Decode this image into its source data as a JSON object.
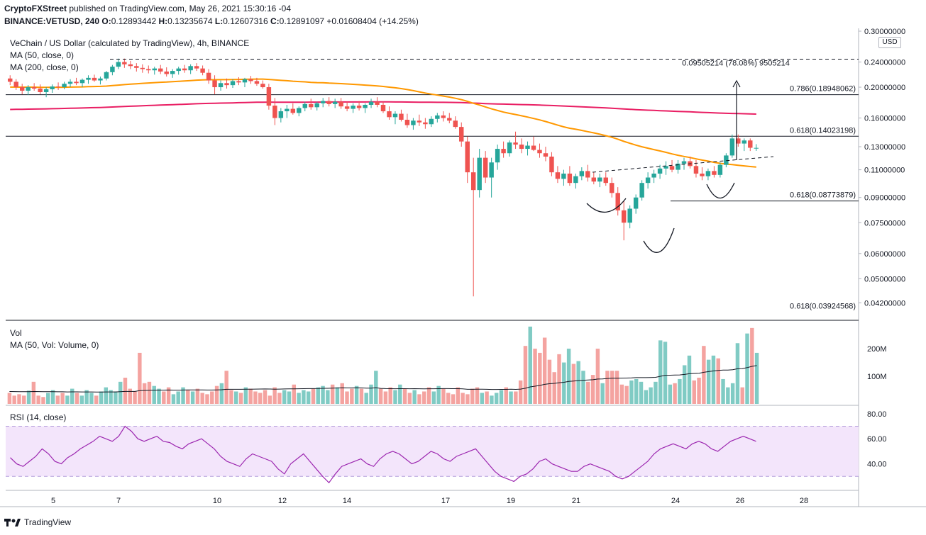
{
  "header": {
    "line1_user": "CryptoFXStreet",
    "line1_rest": " published on TradingView.com, May 26, 2021 15:30:16 -04",
    "line2_symbol": "BINANCE:VETUSD, 240",
    "line2_o_label": "O:",
    "line2_o": "0.12893442",
    "line2_h_label": "H:",
    "line2_h": "0.13235674",
    "line2_l_label": "L:",
    "line2_l": "0.12607316",
    "line2_c_label": "C:",
    "line2_c": "0.12891097",
    "line2_change": "+0.01608404 (+14.25%)"
  },
  "legend": {
    "title": "VeChain / US Dollar (calculated by TradingView), 4h, BINANCE",
    "ma50": "MA (50, close, 0)",
    "ma200": "MA (200, close, 0)",
    "vol_title": "Vol",
    "vol_ma": "MA (50, Vol: Volume, 0)",
    "rsi_title": "RSI (14, close)"
  },
  "currency": "USD",
  "footer": {
    "brand": "TradingView"
  },
  "colors": {
    "up": "#26a69a",
    "down": "#ef5350",
    "ma50": "#ff9800",
    "ma200": "#e91e63",
    "rsi": "#9c27b0",
    "rsi_band": "#f3e5fb"
  },
  "chart_data": [
    {
      "type": "candlestick",
      "title": "VeChain / US Dollar (calculated by TradingView), 4h, BINANCE",
      "x_tick_labels": [
        "5",
        "7",
        "10",
        "12",
        "14",
        "17",
        "19",
        "21",
        "24",
        "26",
        "28"
      ],
      "y_tick_labels": [
        "0.30000000",
        "0.24000000",
        "0.20000000",
        "0.16000000",
        "0.13000000",
        "0.11000000",
        "0.09000000",
        "0.07500000",
        "0.06000000",
        "0.05000000",
        "0.04200000"
      ],
      "y_scale": "log",
      "ylim": [
        0.037,
        0.3
      ],
      "horizontal_levels": [
        {
          "label": "0.786(0.18948062)",
          "value": 0.18948062
        },
        {
          "label": "0.618(0.14023198)",
          "value": 0.14023198
        },
        {
          "label": "0.618(0.08773879)",
          "value": 0.08773879
        },
        {
          "label": "0.618(0.03924568)",
          "value": 0.03924568
        }
      ],
      "target_annotation": {
        "label": "0.09505214 (78.08%) 9505214",
        "value": 0.245
      },
      "ohlc_approx": [
        {
          "o": 0.213,
          "h": 0.218,
          "l": 0.203,
          "c": 0.208
        },
        {
          "o": 0.208,
          "h": 0.212,
          "l": 0.196,
          "c": 0.2
        },
        {
          "o": 0.2,
          "h": 0.205,
          "l": 0.19,
          "c": 0.195
        },
        {
          "o": 0.195,
          "h": 0.203,
          "l": 0.189,
          "c": 0.2
        },
        {
          "o": 0.2,
          "h": 0.206,
          "l": 0.195,
          "c": 0.198
        },
        {
          "o": 0.198,
          "h": 0.204,
          "l": 0.19,
          "c": 0.193
        },
        {
          "o": 0.193,
          "h": 0.2,
          "l": 0.186,
          "c": 0.197
        },
        {
          "o": 0.197,
          "h": 0.204,
          "l": 0.192,
          "c": 0.201
        },
        {
          "o": 0.201,
          "h": 0.207,
          "l": 0.196,
          "c": 0.2
        },
        {
          "o": 0.2,
          "h": 0.208,
          "l": 0.197,
          "c": 0.205
        },
        {
          "o": 0.205,
          "h": 0.212,
          "l": 0.2,
          "c": 0.208
        },
        {
          "o": 0.208,
          "h": 0.214,
          "l": 0.203,
          "c": 0.206
        },
        {
          "o": 0.206,
          "h": 0.213,
          "l": 0.2,
          "c": 0.211
        },
        {
          "o": 0.211,
          "h": 0.218,
          "l": 0.205,
          "c": 0.214
        },
        {
          "o": 0.214,
          "h": 0.219,
          "l": 0.208,
          "c": 0.21
        },
        {
          "o": 0.21,
          "h": 0.216,
          "l": 0.204,
          "c": 0.213
        },
        {
          "o": 0.213,
          "h": 0.225,
          "l": 0.21,
          "c": 0.223
        },
        {
          "o": 0.223,
          "h": 0.235,
          "l": 0.218,
          "c": 0.232
        },
        {
          "o": 0.232,
          "h": 0.246,
          "l": 0.228,
          "c": 0.24
        },
        {
          "o": 0.24,
          "h": 0.246,
          "l": 0.23,
          "c": 0.236
        },
        {
          "o": 0.236,
          "h": 0.242,
          "l": 0.228,
          "c": 0.233
        },
        {
          "o": 0.233,
          "h": 0.238,
          "l": 0.224,
          "c": 0.23
        },
        {
          "o": 0.23,
          "h": 0.236,
          "l": 0.222,
          "c": 0.228
        },
        {
          "o": 0.228,
          "h": 0.234,
          "l": 0.221,
          "c": 0.226
        },
        {
          "o": 0.226,
          "h": 0.232,
          "l": 0.219,
          "c": 0.229
        },
        {
          "o": 0.229,
          "h": 0.235,
          "l": 0.22,
          "c": 0.224
        },
        {
          "o": 0.224,
          "h": 0.231,
          "l": 0.216,
          "c": 0.22
        },
        {
          "o": 0.22,
          "h": 0.228,
          "l": 0.214,
          "c": 0.225
        },
        {
          "o": 0.225,
          "h": 0.232,
          "l": 0.219,
          "c": 0.229
        },
        {
          "o": 0.229,
          "h": 0.235,
          "l": 0.222,
          "c": 0.226
        },
        {
          "o": 0.226,
          "h": 0.236,
          "l": 0.22,
          "c": 0.233
        },
        {
          "o": 0.233,
          "h": 0.238,
          "l": 0.225,
          "c": 0.229
        },
        {
          "o": 0.229,
          "h": 0.234,
          "l": 0.218,
          "c": 0.222
        },
        {
          "o": 0.222,
          "h": 0.228,
          "l": 0.205,
          "c": 0.21
        },
        {
          "o": 0.21,
          "h": 0.218,
          "l": 0.19,
          "c": 0.2
        },
        {
          "o": 0.2,
          "h": 0.21,
          "l": 0.195,
          "c": 0.206
        },
        {
          "o": 0.206,
          "h": 0.213,
          "l": 0.198,
          "c": 0.203
        },
        {
          "o": 0.203,
          "h": 0.212,
          "l": 0.199,
          "c": 0.209
        },
        {
          "o": 0.209,
          "h": 0.215,
          "l": 0.203,
          "c": 0.207
        },
        {
          "o": 0.207,
          "h": 0.214,
          "l": 0.2,
          "c": 0.212
        },
        {
          "o": 0.212,
          "h": 0.217,
          "l": 0.205,
          "c": 0.209
        },
        {
          "o": 0.209,
          "h": 0.214,
          "l": 0.202,
          "c": 0.205
        },
        {
          "o": 0.205,
          "h": 0.21,
          "l": 0.198,
          "c": 0.2
        },
        {
          "o": 0.2,
          "h": 0.205,
          "l": 0.17,
          "c": 0.175
        },
        {
          "o": 0.175,
          "h": 0.185,
          "l": 0.152,
          "c": 0.16
        },
        {
          "o": 0.16,
          "h": 0.172,
          "l": 0.155,
          "c": 0.168
        },
        {
          "o": 0.168,
          "h": 0.176,
          "l": 0.16,
          "c": 0.171
        },
        {
          "o": 0.171,
          "h": 0.178,
          "l": 0.164,
          "c": 0.166
        },
        {
          "o": 0.166,
          "h": 0.174,
          "l": 0.162,
          "c": 0.172
        },
        {
          "o": 0.172,
          "h": 0.18,
          "l": 0.168,
          "c": 0.177
        },
        {
          "o": 0.177,
          "h": 0.184,
          "l": 0.17,
          "c": 0.173
        },
        {
          "o": 0.173,
          "h": 0.18,
          "l": 0.169,
          "c": 0.178
        },
        {
          "o": 0.178,
          "h": 0.185,
          "l": 0.173,
          "c": 0.181
        },
        {
          "o": 0.181,
          "h": 0.186,
          "l": 0.174,
          "c": 0.177
        },
        {
          "o": 0.177,
          "h": 0.184,
          "l": 0.172,
          "c": 0.18
        },
        {
          "o": 0.18,
          "h": 0.185,
          "l": 0.171,
          "c": 0.174
        },
        {
          "o": 0.174,
          "h": 0.18,
          "l": 0.168,
          "c": 0.171
        },
        {
          "o": 0.171,
          "h": 0.178,
          "l": 0.166,
          "c": 0.175
        },
        {
          "o": 0.175,
          "h": 0.181,
          "l": 0.169,
          "c": 0.172
        },
        {
          "o": 0.172,
          "h": 0.178,
          "l": 0.166,
          "c": 0.176
        },
        {
          "o": 0.176,
          "h": 0.184,
          "l": 0.172,
          "c": 0.18
        },
        {
          "o": 0.18,
          "h": 0.186,
          "l": 0.173,
          "c": 0.176
        },
        {
          "o": 0.176,
          "h": 0.18,
          "l": 0.166,
          "c": 0.168
        },
        {
          "o": 0.168,
          "h": 0.174,
          "l": 0.158,
          "c": 0.161
        },
        {
          "o": 0.161,
          "h": 0.168,
          "l": 0.153,
          "c": 0.165
        },
        {
          "o": 0.165,
          "h": 0.17,
          "l": 0.156,
          "c": 0.158
        },
        {
          "o": 0.158,
          "h": 0.165,
          "l": 0.149,
          "c": 0.152
        },
        {
          "o": 0.152,
          "h": 0.16,
          "l": 0.147,
          "c": 0.157
        },
        {
          "o": 0.157,
          "h": 0.164,
          "l": 0.151,
          "c": 0.155
        },
        {
          "o": 0.155,
          "h": 0.16,
          "l": 0.148,
          "c": 0.153
        },
        {
          "o": 0.153,
          "h": 0.162,
          "l": 0.15,
          "c": 0.159
        },
        {
          "o": 0.159,
          "h": 0.166,
          "l": 0.155,
          "c": 0.163
        },
        {
          "o": 0.163,
          "h": 0.168,
          "l": 0.156,
          "c": 0.16
        },
        {
          "o": 0.16,
          "h": 0.166,
          "l": 0.154,
          "c": 0.157
        },
        {
          "o": 0.157,
          "h": 0.162,
          "l": 0.148,
          "c": 0.15
        },
        {
          "o": 0.15,
          "h": 0.155,
          "l": 0.13,
          "c": 0.135
        },
        {
          "o": 0.135,
          "h": 0.14,
          "l": 0.1,
          "c": 0.108
        },
        {
          "o": 0.108,
          "h": 0.12,
          "l": 0.044,
          "c": 0.095
        },
        {
          "o": 0.095,
          "h": 0.128,
          "l": 0.09,
          "c": 0.12
        },
        {
          "o": 0.12,
          "h": 0.126,
          "l": 0.1,
          "c": 0.104
        },
        {
          "o": 0.104,
          "h": 0.12,
          "l": 0.09,
          "c": 0.116
        },
        {
          "o": 0.116,
          "h": 0.132,
          "l": 0.11,
          "c": 0.128
        },
        {
          "o": 0.128,
          "h": 0.135,
          "l": 0.12,
          "c": 0.124
        },
        {
          "o": 0.124,
          "h": 0.136,
          "l": 0.121,
          "c": 0.134
        },
        {
          "o": 0.134,
          "h": 0.145,
          "l": 0.128,
          "c": 0.132
        },
        {
          "o": 0.132,
          "h": 0.138,
          "l": 0.124,
          "c": 0.128
        },
        {
          "o": 0.128,
          "h": 0.135,
          "l": 0.122,
          "c": 0.131
        },
        {
          "o": 0.131,
          "h": 0.14,
          "l": 0.126,
          "c": 0.127
        },
        {
          "o": 0.127,
          "h": 0.133,
          "l": 0.12,
          "c": 0.124
        },
        {
          "o": 0.124,
          "h": 0.13,
          "l": 0.117,
          "c": 0.121
        },
        {
          "o": 0.121,
          "h": 0.125,
          "l": 0.105,
          "c": 0.108
        },
        {
          "o": 0.108,
          "h": 0.113,
          "l": 0.1,
          "c": 0.103
        },
        {
          "o": 0.103,
          "h": 0.11,
          "l": 0.098,
          "c": 0.107
        },
        {
          "o": 0.107,
          "h": 0.113,
          "l": 0.098,
          "c": 0.1
        },
        {
          "o": 0.1,
          "h": 0.107,
          "l": 0.096,
          "c": 0.105
        },
        {
          "o": 0.105,
          "h": 0.112,
          "l": 0.102,
          "c": 0.109
        },
        {
          "o": 0.109,
          "h": 0.114,
          "l": 0.101,
          "c": 0.104
        },
        {
          "o": 0.104,
          "h": 0.108,
          "l": 0.099,
          "c": 0.101
        },
        {
          "o": 0.101,
          "h": 0.107,
          "l": 0.097,
          "c": 0.104
        },
        {
          "o": 0.104,
          "h": 0.108,
          "l": 0.098,
          "c": 0.1
        },
        {
          "o": 0.1,
          "h": 0.104,
          "l": 0.09,
          "c": 0.093
        },
        {
          "o": 0.093,
          "h": 0.097,
          "l": 0.079,
          "c": 0.082
        },
        {
          "o": 0.082,
          "h": 0.088,
          "l": 0.066,
          "c": 0.075
        },
        {
          "o": 0.075,
          "h": 0.085,
          "l": 0.072,
          "c": 0.083
        },
        {
          "o": 0.083,
          "h": 0.092,
          "l": 0.08,
          "c": 0.09
        },
        {
          "o": 0.09,
          "h": 0.102,
          "l": 0.088,
          "c": 0.1
        },
        {
          "o": 0.1,
          "h": 0.108,
          "l": 0.096,
          "c": 0.104
        },
        {
          "o": 0.104,
          "h": 0.11,
          "l": 0.1,
          "c": 0.107
        },
        {
          "o": 0.107,
          "h": 0.114,
          "l": 0.103,
          "c": 0.111
        },
        {
          "o": 0.111,
          "h": 0.117,
          "l": 0.106,
          "c": 0.113
        },
        {
          "o": 0.113,
          "h": 0.118,
          "l": 0.108,
          "c": 0.11
        },
        {
          "o": 0.11,
          "h": 0.118,
          "l": 0.107,
          "c": 0.115
        },
        {
          "o": 0.115,
          "h": 0.12,
          "l": 0.11,
          "c": 0.117
        },
        {
          "o": 0.117,
          "h": 0.121,
          "l": 0.111,
          "c": 0.113
        },
        {
          "o": 0.113,
          "h": 0.118,
          "l": 0.104,
          "c": 0.107
        },
        {
          "o": 0.107,
          "h": 0.112,
          "l": 0.102,
          "c": 0.105
        },
        {
          "o": 0.105,
          "h": 0.111,
          "l": 0.102,
          "c": 0.109
        },
        {
          "o": 0.109,
          "h": 0.113,
          "l": 0.104,
          "c": 0.106
        },
        {
          "o": 0.106,
          "h": 0.116,
          "l": 0.104,
          "c": 0.114
        },
        {
          "o": 0.114,
          "h": 0.124,
          "l": 0.112,
          "c": 0.122
        },
        {
          "o": 0.122,
          "h": 0.142,
          "l": 0.12,
          "c": 0.138
        },
        {
          "o": 0.138,
          "h": 0.142,
          "l": 0.13,
          "c": 0.133
        },
        {
          "o": 0.133,
          "h": 0.138,
          "l": 0.126,
          "c": 0.136
        },
        {
          "o": 0.136,
          "h": 0.138,
          "l": 0.126,
          "c": 0.129
        },
        {
          "o": 0.1289,
          "h": 0.1324,
          "l": 0.1261,
          "c": 0.1289
        }
      ]
    },
    {
      "type": "bar",
      "title": "Vol",
      "y_tick_labels": [
        "200M",
        "100M"
      ],
      "values_millions": [
        40,
        30,
        35,
        30,
        48,
        80,
        30,
        25,
        40,
        50,
        30,
        40,
        30,
        55,
        40,
        30,
        50,
        40,
        30,
        45,
        60,
        50,
        45,
        80,
        95,
        55,
        45,
        185,
        75,
        80,
        65,
        55,
        45,
        60,
        35,
        45,
        60,
        50,
        45,
        55,
        40,
        35,
        45,
        65,
        75,
        120,
        50,
        45,
        40,
        60,
        55,
        45,
        40,
        50,
        30,
        60,
        40,
        50,
        45,
        70,
        40,
        50,
        45,
        55,
        60,
        65,
        50,
        70,
        60,
        75,
        45,
        55,
        65,
        55,
        40,
        70,
        120,
        55,
        45,
        60,
        50,
        70,
        55,
        40,
        50,
        35,
        45,
        60,
        45,
        65,
        55,
        40,
        35,
        60,
        40,
        35,
        55,
        60,
        40,
        45,
        30,
        40,
        50,
        60,
        45,
        45,
        85,
        210,
        280,
        200,
        185,
        240,
        160,
        115,
        180,
        150,
        200,
        145,
        155,
        120,
        80,
        105,
        200,
        75,
        120,
        120,
        120,
        70,
        65,
        85,
        90,
        80,
        50,
        60,
        80,
        230,
        225,
        70,
        75,
        90,
        140,
        175,
        85,
        95,
        210,
        160,
        175,
        165,
        90,
        60,
        75,
        220,
        60,
        255,
        275,
        185
      ],
      "ma_label": "MA (50, Vol: Volume, 0)"
    },
    {
      "type": "line",
      "title": "RSI (14, close)",
      "y_tick_labels": [
        "80.00",
        "60.00",
        "40.00"
      ],
      "ylim": [
        20,
        85
      ],
      "band": [
        30,
        70
      ],
      "values": [
        45,
        40,
        38,
        42,
        46,
        52,
        48,
        42,
        40,
        45,
        48,
        52,
        55,
        58,
        62,
        60,
        58,
        62,
        70,
        66,
        60,
        58,
        60,
        62,
        58,
        57,
        54,
        52,
        56,
        58,
        60,
        56,
        52,
        46,
        42,
        40,
        38,
        44,
        48,
        46,
        44,
        42,
        36,
        32,
        40,
        44,
        48,
        42,
        36,
        30,
        25,
        32,
        38,
        40,
        42,
        44,
        40,
        38,
        44,
        48,
        50,
        48,
        44,
        40,
        42,
        46,
        50,
        48,
        44,
        42,
        46,
        48,
        50,
        52,
        46,
        40,
        34,
        30,
        28,
        26,
        30,
        32,
        36,
        42,
        44,
        40,
        38,
        36,
        34,
        34,
        38,
        40,
        38,
        36,
        34,
        30,
        28,
        30,
        34,
        38,
        42,
        48,
        52,
        54,
        56,
        54,
        52,
        56,
        58,
        56,
        52,
        50,
        54,
        58,
        60,
        62,
        60,
        58
      ]
    }
  ]
}
